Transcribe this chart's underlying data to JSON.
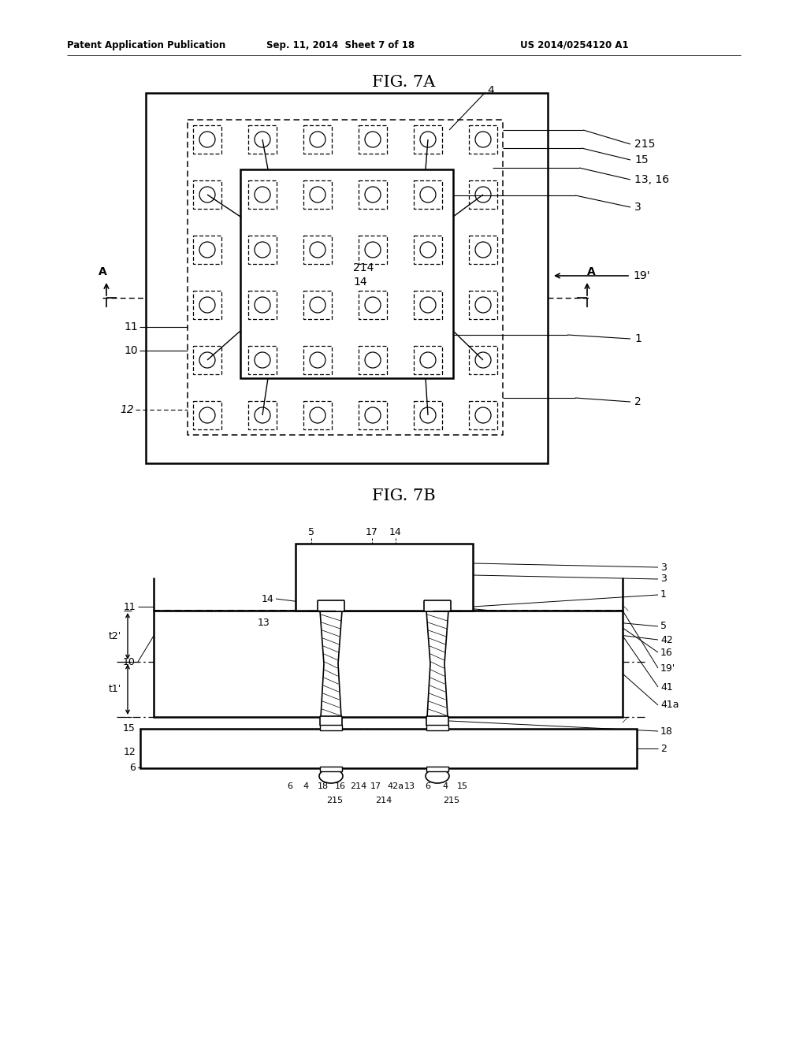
{
  "page_header_left": "Patent Application Publication",
  "page_header_mid": "Sep. 11, 2014  Sheet 7 of 18",
  "page_header_right": "US 2014/0254120 A1",
  "fig7a_title": "FIG. 7A",
  "fig7b_title": "FIG. 7B",
  "bg_color": "#ffffff",
  "line_color": "#000000"
}
